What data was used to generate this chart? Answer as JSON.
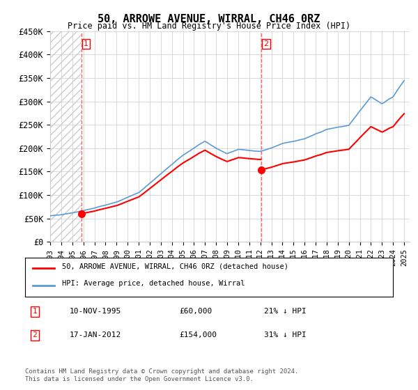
{
  "title": "50, ARROWE AVENUE, WIRRAL, CH46 0RZ",
  "subtitle": "Price paid vs. HM Land Registry's House Price Index (HPI)",
  "ylabel": "",
  "ylim": [
    0,
    450000
  ],
  "yticks": [
    0,
    50000,
    100000,
    150000,
    200000,
    250000,
    300000,
    350000,
    400000,
    450000
  ],
  "ytick_labels": [
    "£0",
    "£50K",
    "£100K",
    "£150K",
    "£200K",
    "£250K",
    "£300K",
    "£350K",
    "£400K",
    "£450K"
  ],
  "hpi_color": "#5b9bd5",
  "price_color": "#ff0000",
  "dashed_color": "#ff6666",
  "transaction1_date": "10-NOV-1995",
  "transaction1_price": 60000,
  "transaction1_label": "1",
  "transaction1_hpi_pct": "21% ↓ HPI",
  "transaction2_date": "17-JAN-2012",
  "transaction2_price": 154000,
  "transaction2_label": "2",
  "transaction2_hpi_pct": "31% ↓ HPI",
  "legend_line1": "50, ARROWE AVENUE, WIRRAL, CH46 0RZ (detached house)",
  "legend_line2": "HPI: Average price, detached house, Wirral",
  "footer": "Contains HM Land Registry data © Crown copyright and database right 2024.\nThis data is licensed under the Open Government Licence v3.0.",
  "hatch_color": "#cccccc",
  "bg_color": "#ffffff",
  "grid_color": "#cccccc"
}
